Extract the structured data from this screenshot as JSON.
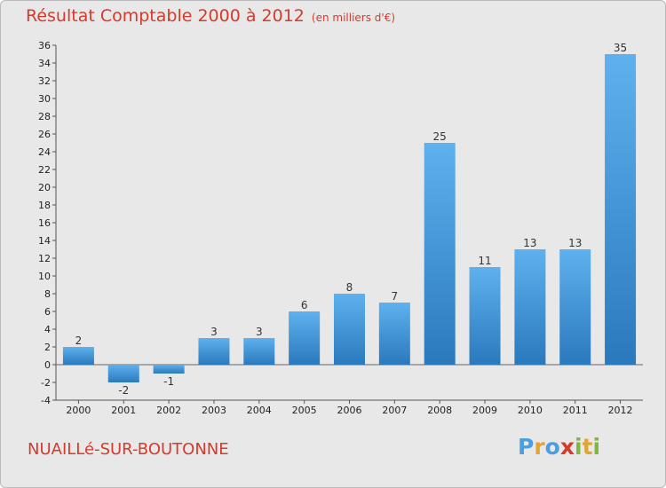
{
  "chart_data": {
    "type": "bar",
    "title": "Résultat Comptable 2000 à 2012",
    "subtitle": "(en milliers d'€)",
    "categories": [
      "2000",
      "2001",
      "2002",
      "2003",
      "2004",
      "2005",
      "2006",
      "2007",
      "2008",
      "2009",
      "2010",
      "2011",
      "2012"
    ],
    "values": [
      2,
      -2,
      -1,
      3,
      3,
      6,
      8,
      7,
      25,
      11,
      13,
      13,
      35
    ],
    "value_labels": [
      "2",
      "-2",
      "-1",
      "3",
      "3",
      "6",
      "8",
      "7",
      "25",
      "11",
      "13",
      "13",
      "35"
    ],
    "ylim": [
      -4,
      36
    ],
    "yticks": [
      "36",
      "34",
      "32",
      "30",
      "28",
      "26",
      "24",
      "22",
      "20",
      "18",
      "16",
      "14",
      "12",
      "10",
      "8",
      "6",
      "4",
      "2",
      "0",
      "-2",
      "-4"
    ],
    "xlabel": "",
    "ylabel": "",
    "grid": false,
    "bar_color": "#3a8fd6"
  },
  "footer": {
    "commune": "NUAILLé-SUR-BOUTONNE",
    "logo_letters": [
      "P",
      "r",
      "o",
      "x",
      "i",
      "t",
      "i"
    ],
    "logo_colors": [
      "#4a9fe0",
      "#e2a532",
      "#4a9fe0",
      "#d63a2b",
      "#7fb83a",
      "#e2a532",
      "#7fb83a"
    ]
  }
}
